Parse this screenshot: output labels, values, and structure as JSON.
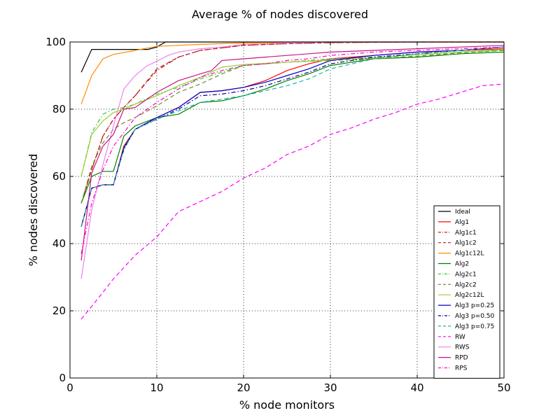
{
  "chart_data": {
    "type": "line",
    "title": "Average % of nodes discovered",
    "xlabel": "% node monitors",
    "ylabel": "% nodes discovered",
    "xlim": [
      0,
      50
    ],
    "ylim": [
      0,
      100
    ],
    "xticks": [
      "0",
      "10",
      "20",
      "30",
      "40",
      "50"
    ],
    "yticks": [
      "0",
      "20",
      "40",
      "60",
      "80",
      "100"
    ],
    "grid": true,
    "legend_position": "lower-right",
    "series": [
      {
        "name": "Ideal",
        "color": "#000000",
        "dash": "solid",
        "x": [
          1.3,
          2.5,
          5,
          7.5,
          9,
          10,
          11,
          15,
          20,
          30,
          40,
          50
        ],
        "y": [
          91,
          97.8,
          97.8,
          97.8,
          97.8,
          98.5,
          100,
          100,
          100,
          100,
          100,
          100
        ]
      },
      {
        "name": "Alg1",
        "color": "#ff0000",
        "dash": "solid",
        "x": [
          1.3,
          2.5,
          3.8,
          5,
          6.2,
          7.5,
          10,
          12.5,
          15,
          17.5,
          20,
          22.5,
          25,
          27.5,
          30,
          35,
          40,
          45,
          50
        ],
        "y": [
          45,
          56.5,
          57.5,
          57.5,
          69,
          74,
          77.5,
          80.5,
          85,
          85.5,
          86.5,
          88.5,
          91.5,
          93.5,
          95,
          96,
          97,
          97.5,
          98
        ]
      },
      {
        "name": "Alg1c1",
        "color": "#cc0000",
        "dash": "dashdot",
        "x": [
          1.3,
          2.5,
          3.8,
          5,
          6.2,
          7.5,
          10,
          12.5,
          15,
          20,
          25,
          30,
          40,
          50
        ],
        "y": [
          52,
          62,
          72,
          77,
          80.5,
          84,
          91.5,
          95.5,
          97.5,
          99,
          99.5,
          99.8,
          100,
          100
        ]
      },
      {
        "name": "Alg1c2",
        "color": "#b22222",
        "dash": "dashed",
        "x": [
          1.3,
          2.5,
          3.8,
          5,
          6.2,
          7.5,
          10,
          12.5,
          15,
          20,
          25,
          30,
          40,
          50
        ],
        "y": [
          52,
          62,
          72,
          77,
          80.5,
          84,
          92,
          95.5,
          97.5,
          99,
          99.5,
          99.8,
          100,
          100
        ]
      },
      {
        "name": "Alg1c12L",
        "color": "#ff8c00",
        "dash": "solid",
        "x": [
          1.3,
          2.5,
          3.8,
          5,
          7.5,
          10,
          12.5,
          15,
          20,
          30,
          40,
          50
        ],
        "y": [
          81.5,
          90,
          95,
          96.3,
          97.5,
          98.7,
          99,
          99.3,
          99.7,
          100,
          100,
          100
        ]
      },
      {
        "name": "Alg2",
        "color": "#008000",
        "dash": "solid",
        "x": [
          1.3,
          2.5,
          3.8,
          5,
          6.2,
          7.5,
          10,
          12.5,
          15,
          17.5,
          20,
          22.5,
          25,
          27.5,
          30,
          32.5,
          35,
          40,
          45,
          50
        ],
        "y": [
          52,
          60,
          61.5,
          61.5,
          72,
          75,
          77.5,
          78.5,
          82,
          82.5,
          84,
          86,
          88.5,
          90.5,
          93,
          94,
          95,
          95.5,
          96.5,
          97
        ]
      },
      {
        "name": "Alg2c1",
        "color": "#32cd32",
        "dash": "dashdot",
        "x": [
          1.3,
          2.5,
          3.8,
          5,
          6.2,
          7.5,
          10,
          12.5,
          15,
          17.5,
          20,
          25,
          30,
          35,
          40,
          45,
          50
        ],
        "y": [
          60,
          73,
          78.5,
          80,
          80.5,
          81.5,
          84.5,
          86.5,
          89,
          91,
          93,
          94,
          95,
          95.5,
          96.3,
          97,
          97.5
        ]
      },
      {
        "name": "Alg2c2",
        "color": "#6b8e23",
        "dash": "dashed",
        "x": [
          1.3,
          2.5,
          3.8,
          5,
          6.2,
          7.5,
          10,
          12.5,
          15,
          17.5,
          20,
          25,
          30,
          35,
          40,
          45,
          50
        ],
        "y": [
          52,
          63,
          70,
          74,
          76,
          77.5,
          81,
          85,
          87.5,
          90.5,
          93,
          94,
          94.5,
          95,
          95.8,
          96.8,
          97.5
        ]
      },
      {
        "name": "Alg2c12L",
        "color": "#9acd32",
        "dash": "solid",
        "x": [
          1.3,
          2.5,
          3.8,
          5,
          6.2,
          7.5,
          10,
          12.5,
          15,
          17.5,
          20,
          25,
          30,
          35,
          40,
          45,
          50
        ],
        "y": [
          60,
          72.5,
          76.5,
          79,
          80,
          81.5,
          84,
          87,
          89.5,
          92.5,
          93.3,
          94,
          94.6,
          95.3,
          96.2,
          97,
          97.8
        ]
      },
      {
        "name": "Alg3 p=0.25",
        "color": "#0000cd",
        "dash": "solid",
        "x": [
          1.3,
          2.5,
          3.8,
          5,
          6.2,
          7.5,
          10,
          12.5,
          15,
          17.5,
          20,
          22.5,
          25,
          27.5,
          30,
          35,
          40,
          45,
          50
        ],
        "y": [
          45,
          56.5,
          57.5,
          57.5,
          68.5,
          74,
          77.5,
          80.5,
          85,
          85.5,
          86.5,
          88,
          90,
          92,
          94.5,
          96,
          97,
          97.5,
          98.5
        ]
      },
      {
        "name": "Alg3 p=0.50",
        "color": "#00008b",
        "dash": "dashdot",
        "x": [
          1.3,
          2.5,
          3.8,
          5,
          6.2,
          7.5,
          10,
          12.5,
          15,
          17.5,
          20,
          22.5,
          25,
          27.5,
          30,
          35,
          40,
          45,
          50
        ],
        "y": [
          45,
          56.5,
          57.5,
          57.5,
          68,
          74,
          77,
          80,
          84,
          84.5,
          85.5,
          87,
          89,
          91,
          93.5,
          95.5,
          96.5,
          97.5,
          98.5
        ]
      },
      {
        "name": "Alg3 p=0.75",
        "color": "#20b2aa",
        "dash": "dashed",
        "x": [
          1.3,
          2.5,
          3.8,
          5,
          6.2,
          7.5,
          10,
          12.5,
          15,
          17.5,
          20,
          22.5,
          25,
          27.5,
          30,
          35,
          40,
          45,
          50
        ],
        "y": [
          45,
          56.5,
          57.5,
          57.5,
          68,
          74,
          77,
          79.5,
          82,
          83,
          84,
          85.5,
          87,
          89,
          92,
          95,
          96.5,
          97.5,
          98.5
        ]
      },
      {
        "name": "RW",
        "color": "#ff00ff",
        "dash": "dashed",
        "x": [
          1.3,
          3.8,
          5,
          7.5,
          10,
          12.5,
          15,
          17.5,
          20,
          22.5,
          25,
          27.5,
          30,
          32.5,
          35,
          37.5,
          40,
          42.5,
          45,
          47.5,
          50
        ],
        "y": [
          17.5,
          25.5,
          29.5,
          36.5,
          42,
          49.5,
          52.5,
          55.5,
          59.5,
          62.5,
          66.5,
          69,
          72.5,
          74.5,
          77,
          79,
          81.5,
          83,
          85,
          87,
          87.5
        ]
      },
      {
        "name": "RWS",
        "color": "#ee82ee",
        "dash": "solid",
        "x": [
          1.3,
          2.5,
          3.8,
          5,
          6.2,
          7.5,
          8.8,
          10,
          11.3,
          12.5,
          15,
          17.5,
          20,
          25,
          30,
          40,
          50
        ],
        "y": [
          29.5,
          50,
          63.5,
          75,
          86,
          90,
          92.8,
          94.3,
          96,
          97,
          98,
          98.5,
          99.3,
          99.7,
          100,
          100,
          100
        ]
      },
      {
        "name": "RPD",
        "color": "#c71585",
        "dash": "solid",
        "x": [
          1.3,
          2.5,
          3.8,
          5,
          6.2,
          7.5,
          10,
          12.5,
          15,
          16.3,
          17.5,
          20,
          22.5,
          25,
          27.5,
          30,
          35,
          40,
          45,
          50
        ],
        "y": [
          35,
          61,
          69,
          72.5,
          80,
          80.5,
          85,
          88.5,
          90.5,
          91.5,
          94.5,
          95,
          95.5,
          96,
          96.5,
          97,
          97.5,
          98,
          98.5,
          99
        ]
      },
      {
        "name": "RPS",
        "color": "#ff00cc",
        "dash": "dashdot",
        "x": [
          1.3,
          2.5,
          3.8,
          5,
          6.2,
          7.5,
          10,
          12.5,
          15,
          17.5,
          20,
          22.5,
          25,
          27.5,
          30,
          35,
          40,
          45,
          50
        ],
        "y": [
          37,
          52,
          62,
          69,
          73,
          77.5,
          82,
          86,
          89.5,
          91.5,
          93,
          93.5,
          94.5,
          95,
          96,
          97,
          97.5,
          98,
          98.5
        ]
      }
    ]
  }
}
